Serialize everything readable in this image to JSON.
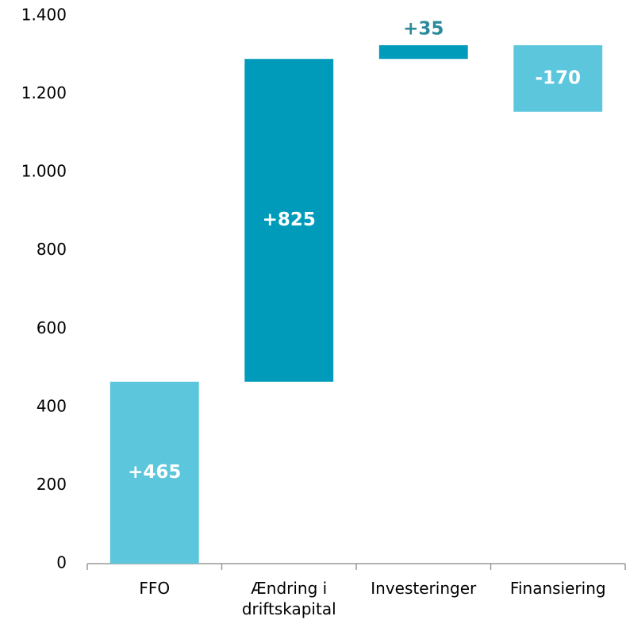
{
  "chart_data": {
    "type": "waterfall",
    "categories": [
      "FFO",
      "Ændring i driftskapital",
      "Investeringer",
      "Finansiering"
    ],
    "values": [
      465,
      825,
      35,
      -170
    ],
    "value_labels": [
      "+465",
      "+825",
      "+35",
      "-170"
    ],
    "colors": [
      "#5bc6dc",
      "#009bbb",
      "#009bbb",
      "#5bc6dc"
    ],
    "ylim": [
      0,
      1400
    ],
    "yticks": [
      0,
      200,
      400,
      600,
      800,
      {
        "value": 1000,
        "label": "1.000"
      },
      {
        "value": 1200,
        "label": "1.200"
      },
      {
        "value": 1400,
        "label": "1.400"
      }
    ],
    "grid": false
  }
}
